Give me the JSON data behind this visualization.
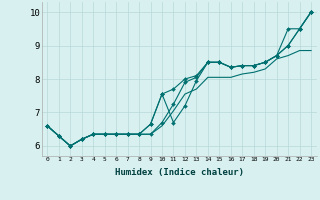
{
  "background_color": "#d8f0f0",
  "grid_color": "#b8d8d8",
  "line_color": "#007070",
  "marker_color": "#007070",
  "xlabel": "Humidex (Indice chaleur)",
  "xlim": [
    -0.5,
    23.5
  ],
  "ylim": [
    5.7,
    10.3
  ],
  "yticks": [
    6,
    7,
    8,
    9,
    10
  ],
  "xticks": [
    0,
    1,
    2,
    3,
    4,
    5,
    6,
    7,
    8,
    9,
    10,
    11,
    12,
    13,
    14,
    15,
    16,
    17,
    18,
    19,
    20,
    21,
    22,
    23
  ],
  "series1_x": [
    0,
    1,
    2,
    3,
    4,
    5,
    6,
    7,
    8,
    9,
    10,
    11,
    12,
    13,
    14,
    15,
    16,
    17,
    18,
    19,
    20,
    21,
    22,
    23
  ],
  "series1_y": [
    6.6,
    6.3,
    6.0,
    6.2,
    6.35,
    6.35,
    6.35,
    6.35,
    6.35,
    6.35,
    6.7,
    7.25,
    7.9,
    8.05,
    8.5,
    8.5,
    8.35,
    8.4,
    8.4,
    8.5,
    8.7,
    9.0,
    9.5,
    10.0
  ],
  "series2_x": [
    0,
    1,
    2,
    3,
    4,
    5,
    6,
    7,
    8,
    9,
    10,
    11,
    12,
    13,
    14,
    15,
    16,
    17,
    18,
    19,
    20,
    21,
    22,
    23
  ],
  "series2_y": [
    6.6,
    6.3,
    6.0,
    6.2,
    6.35,
    6.35,
    6.35,
    6.35,
    6.35,
    6.65,
    7.55,
    7.7,
    8.0,
    8.1,
    8.5,
    8.5,
    8.35,
    8.4,
    8.4,
    8.5,
    8.7,
    9.0,
    9.5,
    10.0
  ],
  "series3_x": [
    0,
    1,
    2,
    3,
    4,
    5,
    6,
    7,
    8,
    9,
    10,
    11,
    12,
    13,
    14,
    15,
    16,
    17,
    18,
    19,
    20,
    21,
    22,
    23
  ],
  "series3_y": [
    6.6,
    6.3,
    6.0,
    6.2,
    6.35,
    6.35,
    6.35,
    6.35,
    6.35,
    6.65,
    7.55,
    6.7,
    7.2,
    7.95,
    8.5,
    8.5,
    8.35,
    8.4,
    8.4,
    8.5,
    8.7,
    9.5,
    9.5,
    10.0
  ],
  "series4_x": [
    0,
    1,
    2,
    3,
    4,
    5,
    6,
    7,
    8,
    9,
    10,
    11,
    12,
    13,
    14,
    15,
    16,
    17,
    18,
    19,
    20,
    21,
    22,
    23
  ],
  "series4_y": [
    6.6,
    6.3,
    6.0,
    6.2,
    6.35,
    6.35,
    6.35,
    6.35,
    6.35,
    6.35,
    6.6,
    7.05,
    7.55,
    7.7,
    8.05,
    8.05,
    8.05,
    8.15,
    8.2,
    8.3,
    8.6,
    8.7,
    8.85,
    8.85
  ]
}
